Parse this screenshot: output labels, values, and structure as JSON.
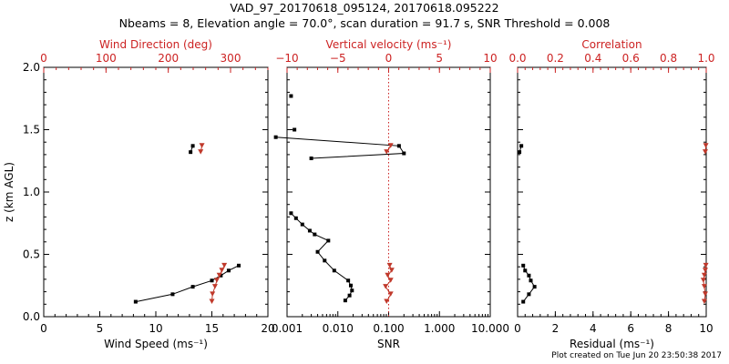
{
  "title_line1": "VAD_97_20170618_095124, 20170618.095222",
  "title_line2": "Nbeams = 8, Elevation angle = 70.0°, scan duration = 91.7 s, SNR Threshold = 0.008",
  "footer": "Plot created on Tue Jun 20 23:50:38 2017",
  "colors": {
    "axis": "#000000",
    "red": "#cc2222",
    "dir_marker": "#c0392b"
  },
  "chart_data": [
    {
      "type": "scatter",
      "panel": "wind",
      "ylabel": "z (km AGL)",
      "ylim": [
        0,
        2
      ],
      "y_ticks": [
        "0.0",
        "0.5",
        "1.0",
        "1.5",
        "2.0"
      ],
      "bottom_axis": {
        "label": "Wind Speed (ms⁻¹)",
        "range": [
          0,
          20
        ],
        "ticks": [
          "0",
          "5",
          "10",
          "15",
          "20"
        ]
      },
      "top_axis": {
        "label": "Wind Direction (deg)",
        "range": [
          0,
          360
        ],
        "ticks": [
          "0",
          "100",
          "200",
          "300"
        ]
      },
      "series": [
        {
          "name": "Wind Speed",
          "axis": "bottom",
          "connected": true,
          "x": [
            8.2,
            11.5,
            13.3,
            15.0,
            15.8,
            16.5,
            17.4
          ],
          "y": [
            0.12,
            0.18,
            0.24,
            0.29,
            0.33,
            0.37,
            0.41
          ]
        },
        {
          "name": "Wind Speed",
          "axis": "bottom",
          "connected": true,
          "x": [
            13.1,
            13.3
          ],
          "y": [
            1.32,
            1.37
          ]
        },
        {
          "name": "Wind Direction",
          "axis": "top",
          "connected": true,
          "x": [
            270,
            271,
            275,
            278,
            282,
            286,
            290
          ],
          "y": [
            0.12,
            0.18,
            0.24,
            0.29,
            0.33,
            0.37,
            0.41
          ]
        },
        {
          "name": "Wind Direction",
          "axis": "top",
          "connected": true,
          "x": [
            252,
            254
          ],
          "y": [
            1.32,
            1.37
          ]
        }
      ]
    },
    {
      "type": "scatter",
      "panel": "snr",
      "ylim": [
        0,
        2
      ],
      "bottom_axis": {
        "label": "SNR",
        "scale": "log",
        "range": [
          0.001,
          10
        ],
        "ticks": [
          "0.001",
          "0.010",
          "0.100",
          "1.000",
          "10.000"
        ]
      },
      "top_axis": {
        "label": "Vertical velocity (ms⁻¹)",
        "range": [
          -10,
          10
        ],
        "ticks": [
          "−10",
          "−5",
          "0",
          "5",
          "10"
        ],
        "reference_line": 0
      },
      "series": [
        {
          "name": "SNR",
          "axis": "bottom",
          "connected": true,
          "x": [
            0.014,
            0.017,
            0.019,
            0.018,
            0.016,
            0.0085,
            0.0055,
            0.004,
            0.0065,
            0.0035,
            0.0028,
            0.002,
            0.0015,
            0.0012
          ],
          "y": [
            0.13,
            0.17,
            0.21,
            0.25,
            0.29,
            0.37,
            0.45,
            0.52,
            0.61,
            0.66,
            0.69,
            0.74,
            0.79,
            0.83
          ]
        },
        {
          "name": "SNR",
          "axis": "bottom",
          "connected": true,
          "x": [
            0.0006,
            0.16,
            0.2,
            0.003
          ],
          "y": [
            1.44,
            1.37,
            1.31,
            1.27
          ]
        },
        {
          "name": "SNR",
          "axis": "bottom",
          "connected": false,
          "x": [
            0.0012,
            0.0014
          ],
          "y": [
            1.77,
            1.5
          ]
        },
        {
          "name": "Vertical velocity",
          "axis": "top",
          "connected": true,
          "x": [
            -0.2,
            0.2,
            -0.3,
            0.2,
            -0.1,
            0.3,
            0.1
          ],
          "y": [
            0.12,
            0.18,
            0.24,
            0.29,
            0.33,
            0.37,
            0.41
          ]
        },
        {
          "name": "Vertical velocity",
          "axis": "top",
          "connected": true,
          "x": [
            -0.2,
            0.2
          ],
          "y": [
            1.32,
            1.37
          ]
        }
      ]
    },
    {
      "type": "scatter",
      "panel": "residual",
      "ylim": [
        0,
        2
      ],
      "bottom_axis": {
        "label": "Residual (ms⁻¹)",
        "range": [
          0,
          10
        ],
        "ticks": [
          "0",
          "2",
          "4",
          "6",
          "8",
          "10"
        ]
      },
      "top_axis": {
        "label": "Correlation",
        "range": [
          0,
          1
        ],
        "ticks": [
          "0.0",
          "0.2",
          "0.4",
          "0.6",
          "0.8",
          "1.0"
        ]
      },
      "series": [
        {
          "name": "Residual",
          "axis": "bottom",
          "connected": true,
          "x": [
            0.3,
            0.6,
            0.9,
            0.7,
            0.6,
            0.4,
            0.3
          ],
          "y": [
            0.12,
            0.18,
            0.24,
            0.29,
            0.33,
            0.37,
            0.41
          ]
        },
        {
          "name": "Residual",
          "axis": "bottom",
          "connected": true,
          "x": [
            0.1,
            0.2
          ],
          "y": [
            1.32,
            1.37
          ]
        },
        {
          "name": "Correlation",
          "axis": "top",
          "connected": true,
          "x": [
            0.99,
            0.995,
            0.99,
            0.985,
            0.99,
            0.995,
            0.998
          ],
          "y": [
            0.12,
            0.18,
            0.24,
            0.29,
            0.33,
            0.37,
            0.41
          ]
        },
        {
          "name": "Correlation",
          "axis": "top",
          "connected": true,
          "x": [
            0.995,
            0.998
          ],
          "y": [
            1.32,
            1.37
          ]
        }
      ]
    }
  ]
}
